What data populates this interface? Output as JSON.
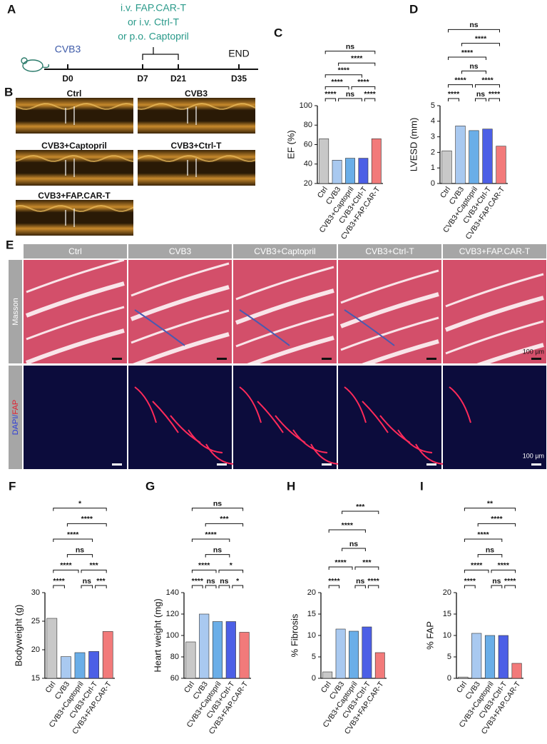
{
  "timeline": {
    "panel": "A",
    "treatment": [
      "i.v. FAP.CAR-T",
      "or i.v. Ctrl-T",
      "or p.o. Captopril"
    ],
    "virus": "CVB3",
    "days": [
      "D0",
      "D7",
      "D21",
      "D35"
    ],
    "end": "END"
  },
  "echo": {
    "panel": "B",
    "labels": [
      "Ctrl",
      "CVB3",
      "CVB3+Captopril",
      "CVB3+Ctrl-T",
      "CVB3+FAP.CAR-T"
    ]
  },
  "histology": {
    "panel": "E",
    "columns": [
      "Ctrl",
      "CVB3",
      "CVB3+Captopril",
      "CVB3+Ctrl-T",
      "CVB3+FAP.CAR-T"
    ],
    "masson": "Masson",
    "dapi": "DAPI/",
    "fap": "FAP",
    "scale_bar": "100 µm"
  },
  "chart_data": [
    {
      "type": "bar",
      "panel": "C",
      "y_label": "EF (%)",
      "categories": [
        "Ctrl",
        "CVB3",
        "CVB3+Captopril",
        "CVB3+Ctrl-T",
        "CVB3+FAP.CAR-T"
      ],
      "colors": [
        "#c8c8c8",
        "#a9c9f0",
        "#6aaee8",
        "#4c5fe6",
        "#f27a7a"
      ],
      "values": [
        66,
        44,
        46,
        46,
        66
      ],
      "ylim": [
        20,
        100
      ],
      "yticks": [
        20,
        40,
        60,
        80,
        100
      ],
      "comparisons": [
        {
          "between": [
            "Ctrl",
            "CVB3"
          ],
          "label": "****"
        },
        {
          "between": [
            "CVB3",
            "CVB3+Ctrl-T"
          ],
          "label": "ns"
        },
        {
          "between": [
            "CVB3+Ctrl-T",
            "CVB3+FAP.CAR-T"
          ],
          "label": "****"
        },
        {
          "between": [
            "Ctrl",
            "CVB3+Captopril"
          ],
          "label": "****"
        },
        {
          "between": [
            "CVB3+Captopril",
            "CVB3+FAP.CAR-T"
          ],
          "label": "****"
        },
        {
          "between": [
            "Ctrl",
            "CVB3+Ctrl-T"
          ],
          "label": "****"
        },
        {
          "between": [
            "CVB3",
            "CVB3+FAP.CAR-T"
          ],
          "label": "****"
        },
        {
          "between": [
            "Ctrl",
            "CVB3+FAP.CAR-T"
          ],
          "label": "ns"
        }
      ]
    },
    {
      "type": "bar",
      "panel": "D",
      "y_label": "LVESD (mm)",
      "categories": [
        "Ctrl",
        "CVB3",
        "CVB3+Captopril",
        "CVB3+Ctrl-T",
        "CVB3+FAP.CAR-T"
      ],
      "colors": [
        "#c8c8c8",
        "#a9c9f0",
        "#6aaee8",
        "#4c5fe6",
        "#f27a7a"
      ],
      "values": [
        2.1,
        3.7,
        3.4,
        3.5,
        2.4
      ],
      "ylim": [
        0,
        5
      ],
      "yticks": [
        0,
        1,
        2,
        3,
        4,
        5
      ],
      "comparisons": [
        {
          "between": [
            "Ctrl",
            "CVB3"
          ],
          "label": "****"
        },
        {
          "between": [
            "CVB3+Captopril",
            "CVB3+Ctrl-T"
          ],
          "label": "ns"
        },
        {
          "between": [
            "CVB3+Ctrl-T",
            "CVB3+FAP.CAR-T"
          ],
          "label": "****"
        },
        {
          "between": [
            "Ctrl",
            "CVB3+Captopril"
          ],
          "label": "****"
        },
        {
          "between": [
            "CVB3",
            "CVB3+Ctrl-T"
          ],
          "label": "ns"
        },
        {
          "between": [
            "CVB3+Captopril",
            "CVB3+FAP.CAR-T"
          ],
          "label": "****"
        },
        {
          "between": [
            "Ctrl",
            "CVB3+Ctrl-T"
          ],
          "label": "****"
        },
        {
          "between": [
            "CVB3",
            "CVB3+FAP.CAR-T"
          ],
          "label": "****"
        },
        {
          "between": [
            "Ctrl",
            "CVB3+FAP.CAR-T"
          ],
          "label": "ns"
        }
      ]
    },
    {
      "type": "bar",
      "panel": "F",
      "y_label": "Bodyweight (g)",
      "categories": [
        "Ctrl",
        "CVB3",
        "CVB3+Captopril",
        "CVB3+Ctrl-T",
        "CVB3+FAP.CAR-T"
      ],
      "colors": [
        "#c8c8c8",
        "#a9c9f0",
        "#6aaee8",
        "#4c5fe6",
        "#f27a7a"
      ],
      "values": [
        25.5,
        18.8,
        19.5,
        19.7,
        23.2
      ],
      "ylim": [
        15,
        30
      ],
      "yticks": [
        15,
        20,
        25,
        30
      ],
      "comparisons": [
        {
          "between": [
            "Ctrl",
            "CVB3"
          ],
          "label": "****"
        },
        {
          "between": [
            "CVB3+Captopril",
            "CVB3+Ctrl-T"
          ],
          "label": "ns"
        },
        {
          "between": [
            "CVB3+Ctrl-T",
            "CVB3+FAP.CAR-T"
          ],
          "label": "***"
        },
        {
          "between": [
            "Ctrl",
            "CVB3+Captopril"
          ],
          "label": "****"
        },
        {
          "between": [
            "CVB3",
            "CVB3+Ctrl-T"
          ],
          "label": "ns"
        },
        {
          "between": [
            "CVB3+Captopril",
            "CVB3+FAP.CAR-T"
          ],
          "label": "***"
        },
        {
          "between": [
            "Ctrl",
            "CVB3+Ctrl-T"
          ],
          "label": "****"
        },
        {
          "between": [
            "CVB3",
            "CVB3+FAP.CAR-T"
          ],
          "label": "****"
        },
        {
          "between": [
            "Ctrl",
            "CVB3+FAP.CAR-T"
          ],
          "label": "*"
        }
      ]
    },
    {
      "type": "bar",
      "panel": "G",
      "y_label": "Heart weight (mg)",
      "categories": [
        "Ctrl",
        "CVB3",
        "CVB3+Captopril",
        "CVB3+Ctrl-T",
        "CVB3+FAP.CAR-T"
      ],
      "colors": [
        "#c8c8c8",
        "#a9c9f0",
        "#6aaee8",
        "#4c5fe6",
        "#f27a7a"
      ],
      "values": [
        94,
        120,
        113,
        113,
        103
      ],
      "ylim": [
        60,
        140
      ],
      "yticks": [
        60,
        80,
        100,
        120,
        140
      ],
      "comparisons": [
        {
          "between": [
            "Ctrl",
            "CVB3"
          ],
          "label": "****"
        },
        {
          "between": [
            "CVB3",
            "CVB3+Captopril"
          ],
          "label": "ns"
        },
        {
          "between": [
            "CVB3+Captopril",
            "CVB3+Ctrl-T"
          ],
          "label": "ns"
        },
        {
          "between": [
            "CVB3+Ctrl-T",
            "CVB3+FAP.CAR-T"
          ],
          "label": "*"
        },
        {
          "between": [
            "Ctrl",
            "CVB3+Captopril"
          ],
          "label": "****"
        },
        {
          "between": [
            "CVB3",
            "CVB3+Ctrl-T"
          ],
          "label": "ns"
        },
        {
          "between": [
            "CVB3+Captopril",
            "CVB3+FAP.CAR-T"
          ],
          "label": "*"
        },
        {
          "between": [
            "Ctrl",
            "CVB3+Ctrl-T"
          ],
          "label": "****"
        },
        {
          "between": [
            "CVB3",
            "CVB3+FAP.CAR-T"
          ],
          "label": "***"
        },
        {
          "between": [
            "Ctrl",
            "CVB3+FAP.CAR-T"
          ],
          "label": "ns"
        }
      ]
    },
    {
      "type": "bar",
      "panel": "H",
      "y_label": "% Fibrosis",
      "categories": [
        "Ctrl",
        "CVB3",
        "CVB3+Captopril",
        "CVB3+Ctrl-T",
        "CVB3+FAP.CAR-T"
      ],
      "colors": [
        "#c8c8c8",
        "#a9c9f0",
        "#6aaee8",
        "#4c5fe6",
        "#f27a7a"
      ],
      "values": [
        1.5,
        11.5,
        11,
        12,
        6
      ],
      "ylim": [
        0,
        20
      ],
      "yticks": [
        0,
        5,
        10,
        15,
        20
      ],
      "comparisons": [
        {
          "between": [
            "Ctrl",
            "CVB3"
          ],
          "label": "****"
        },
        {
          "between": [
            "CVB3+Captopril",
            "CVB3+Ctrl-T"
          ],
          "label": "ns"
        },
        {
          "between": [
            "CVB3+Ctrl-T",
            "CVB3+FAP.CAR-T"
          ],
          "label": "****"
        },
        {
          "between": [
            "Ctrl",
            "CVB3+Captopril"
          ],
          "label": "****"
        },
        {
          "between": [
            "CVB3",
            "CVB3+Ctrl-T"
          ],
          "label": "ns"
        },
        {
          "between": [
            "CVB3+Captopril",
            "CVB3+FAP.CAR-T"
          ],
          "label": "***"
        },
        {
          "between": [
            "Ctrl",
            "CVB3+Ctrl-T"
          ],
          "label": "****"
        },
        {
          "between": [
            "CVB3",
            "CVB3+FAP.CAR-T"
          ],
          "label": "***"
        }
      ]
    },
    {
      "type": "bar",
      "panel": "I",
      "y_label": "% FAP",
      "categories": [
        "Ctrl",
        "CVB3",
        "CVB3+Captopril",
        "CVB3+Ctrl-T",
        "CVB3+FAP.CAR-T"
      ],
      "colors": [
        "#c8c8c8",
        "#a9c9f0",
        "#6aaee8",
        "#4c5fe6",
        "#f27a7a"
      ],
      "values": [
        0.3,
        10.5,
        10,
        10,
        3.5
      ],
      "ylim": [
        0,
        20
      ],
      "yticks": [
        0,
        5,
        10,
        15,
        20
      ],
      "comparisons": [
        {
          "between": [
            "Ctrl",
            "CVB3"
          ],
          "label": "****"
        },
        {
          "between": [
            "CVB3+Captopril",
            "CVB3+Ctrl-T"
          ],
          "label": "ns"
        },
        {
          "between": [
            "CVB3+Ctrl-T",
            "CVB3+FAP.CAR-T"
          ],
          "label": "****"
        },
        {
          "between": [
            "Ctrl",
            "CVB3+Captopril"
          ],
          "label": "****"
        },
        {
          "between": [
            "CVB3",
            "CVB3+Ctrl-T"
          ],
          "label": "ns"
        },
        {
          "between": [
            "CVB3+Captopril",
            "CVB3+FAP.CAR-T"
          ],
          "label": "****"
        },
        {
          "between": [
            "Ctrl",
            "CVB3+Ctrl-T"
          ],
          "label": "****"
        },
        {
          "between": [
            "CVB3",
            "CVB3+FAP.CAR-T"
          ],
          "label": "****"
        },
        {
          "between": [
            "Ctrl",
            "CVB3+FAP.CAR-T"
          ],
          "label": "**"
        }
      ]
    }
  ]
}
